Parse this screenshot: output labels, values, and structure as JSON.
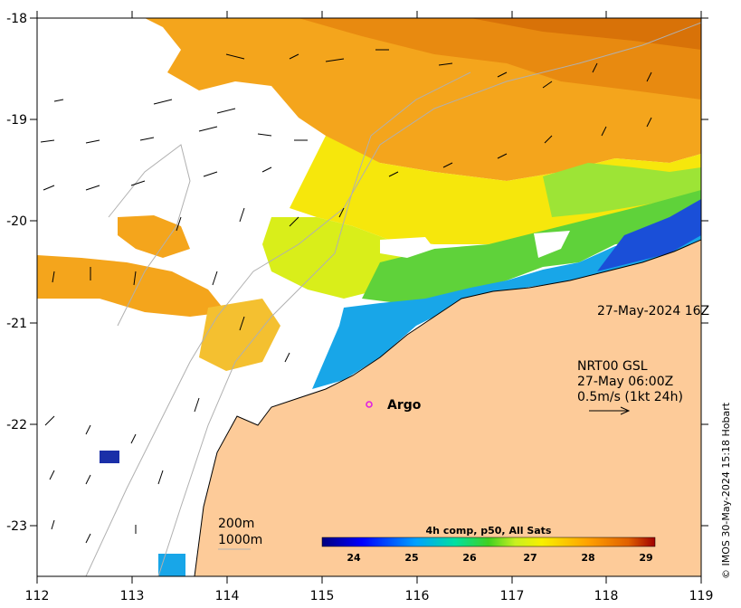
{
  "timestamp_label": "27-May-2024 16Z",
  "current_info": {
    "line1": "NRT00 GSL",
    "line2": "27-May 06:00Z",
    "line3": "0.5m/s (1kt 24h)"
  },
  "argo_label": "Argo",
  "isobaths": {
    "line1": "200m",
    "line2": "1000m"
  },
  "colorbar": {
    "title": "4h comp, p50, All Sats",
    "ticks": [
      "24",
      "25",
      "26",
      "27",
      "28",
      "29"
    ],
    "min": 23.5,
    "max": 29.5
  },
  "axes": {
    "lon_ticks": [
      "112",
      "113",
      "114",
      "115",
      "116",
      "117",
      "118",
      "119"
    ],
    "lat_ticks": [
      "-18",
      "-19",
      "-20",
      "-21",
      "-22",
      "-23"
    ],
    "lon_range": [
      112,
      119
    ],
    "lat_range": [
      -23.5,
      -18
    ]
  },
  "credit": "© IMOS 30-May-2024 15:18 Hobart",
  "colors": {
    "land": "#fdcb99",
    "argo": "#e020e0",
    "isobath": "#b0b0b0",
    "coast": "#000000"
  }
}
